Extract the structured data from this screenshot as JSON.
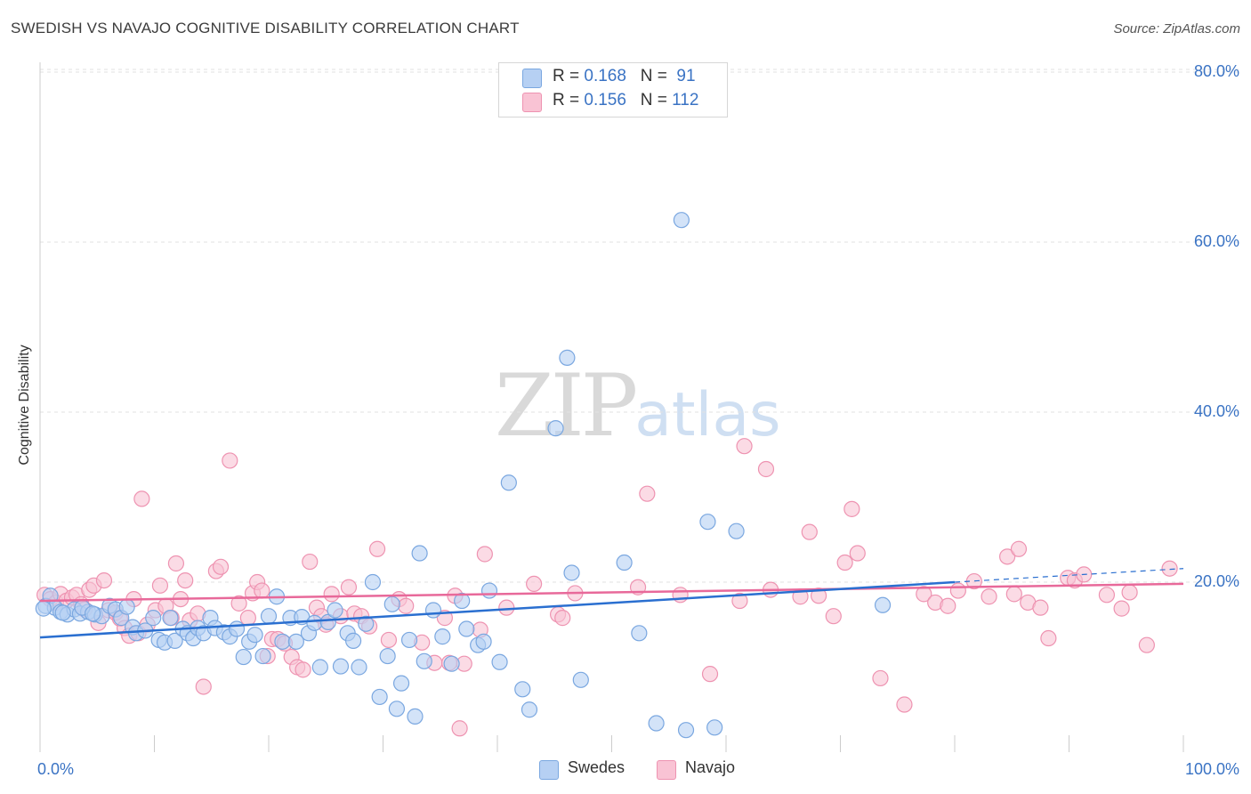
{
  "header": {
    "title": "SWEDISH VS NAVAJO COGNITIVE DISABILITY CORRELATION CHART",
    "source": "Source: ZipAtlas.com"
  },
  "watermark": {
    "zip": "ZIP",
    "atlas": "atlas"
  },
  "legend_top": [
    {
      "r_label": "R = ",
      "r_value": "0.168",
      "n_label": "N = ",
      "n_value": " 91"
    },
    {
      "r_label": "R = ",
      "r_value": "0.156",
      "n_label": "N = ",
      "n_value": "112"
    }
  ],
  "legend_bottom": [
    "Swedes",
    "Navajo"
  ],
  "colors": {
    "swedes_fill": "#b6d0f3",
    "swedes_stroke": "#7aa7e0",
    "swedes_line": "#2a6fd0",
    "navajo_fill": "#f9c3d4",
    "navajo_stroke": "#ee93b1",
    "navajo_line": "#e8699a",
    "tick_text": "#3a73c4",
    "grid": "#e2e2e2"
  },
  "chart_data": {
    "type": "scatter",
    "title": "SWEDISH VS NAVAJO COGNITIVE DISABILITY CORRELATION CHART",
    "xlabel": "",
    "ylabel": "Cognitive Disability",
    "xlim": [
      0,
      100
    ],
    "ylim": [
      0,
      85
    ],
    "x_tick_labels": [
      "0.0%",
      "100.0%"
    ],
    "y_ticks": [
      20,
      40,
      60,
      80
    ],
    "y_tick_labels": [
      "20.0%",
      "40.0%",
      "60.0%",
      "80.0%"
    ],
    "grid": true,
    "legend": "top-center",
    "series": [
      {
        "name": "Swedes",
        "R": 0.168,
        "N": 91,
        "trend": {
          "x": [
            0,
            80
          ],
          "y": [
            13.5,
            20.0
          ]
        },
        "trend_extension": {
          "x": [
            80,
            100
          ],
          "y": [
            20.0,
            21.6
          ]
        },
        "points": [
          [
            0.5,
            17.2
          ],
          [
            0.9,
            18.4
          ],
          [
            1.3,
            17.0
          ],
          [
            1.8,
            16.5
          ],
          [
            2.4,
            16.2
          ],
          [
            3.0,
            16.8
          ],
          [
            3.5,
            16.3
          ],
          [
            4.2,
            16.5
          ],
          [
            4.8,
            16.2
          ],
          [
            5.4,
            16.0
          ],
          [
            6.1,
            17.2
          ],
          [
            6.6,
            16.8
          ],
          [
            7.1,
            15.8
          ],
          [
            7.6,
            17.1
          ],
          [
            8.1,
            14.7
          ],
          [
            8.4,
            14.0
          ],
          [
            9.2,
            14.3
          ],
          [
            9.9,
            15.8
          ],
          [
            10.4,
            13.2
          ],
          [
            10.9,
            12.9
          ],
          [
            11.4,
            15.8
          ],
          [
            11.8,
            13.1
          ],
          [
            12.5,
            14.5
          ],
          [
            12.9,
            14.0
          ],
          [
            13.4,
            13.4
          ],
          [
            13.8,
            14.6
          ],
          [
            14.3,
            14.0
          ],
          [
            14.9,
            15.8
          ],
          [
            15.3,
            14.6
          ],
          [
            16.1,
            14.1
          ],
          [
            16.6,
            13.6
          ],
          [
            17.2,
            14.5
          ],
          [
            17.8,
            11.2
          ],
          [
            18.3,
            13.0
          ],
          [
            18.8,
            13.8
          ],
          [
            19.5,
            11.3
          ],
          [
            20.0,
            16.0
          ],
          [
            20.7,
            18.3
          ],
          [
            21.2,
            13.0
          ],
          [
            21.9,
            15.8
          ],
          [
            22.4,
            13.0
          ],
          [
            22.9,
            15.9
          ],
          [
            23.5,
            14.0
          ],
          [
            24.0,
            15.2
          ],
          [
            24.5,
            10.0
          ],
          [
            25.2,
            15.3
          ],
          [
            25.8,
            16.7
          ],
          [
            26.3,
            10.1
          ],
          [
            26.9,
            14.0
          ],
          [
            27.4,
            13.1
          ],
          [
            27.9,
            10.0
          ],
          [
            28.5,
            15.1
          ],
          [
            29.1,
            20.0
          ],
          [
            29.7,
            6.5
          ],
          [
            30.4,
            11.3
          ],
          [
            30.8,
            17.4
          ],
          [
            31.2,
            5.1
          ],
          [
            31.6,
            8.1
          ],
          [
            32.3,
            13.2
          ],
          [
            32.8,
            4.2
          ],
          [
            33.2,
            23.4
          ],
          [
            33.6,
            10.7
          ],
          [
            34.4,
            16.7
          ],
          [
            35.2,
            13.6
          ],
          [
            36.0,
            10.4
          ],
          [
            36.9,
            17.8
          ],
          [
            37.3,
            14.5
          ],
          [
            38.3,
            12.6
          ],
          [
            38.8,
            13.0
          ],
          [
            39.3,
            19.0
          ],
          [
            40.2,
            10.6
          ],
          [
            41.0,
            31.7
          ],
          [
            42.2,
            7.4
          ],
          [
            42.8,
            5.0
          ],
          [
            45.1,
            38.1
          ],
          [
            46.5,
            21.1
          ],
          [
            47.3,
            8.5
          ],
          [
            46.1,
            46.4
          ],
          [
            51.1,
            22.3
          ],
          [
            52.4,
            14.0
          ],
          [
            53.9,
            3.4
          ],
          [
            56.1,
            62.6
          ],
          [
            56.5,
            2.6
          ],
          [
            58.4,
            27.1
          ],
          [
            59.0,
            2.9
          ],
          [
            60.9,
            26.0
          ],
          [
            73.7,
            17.3
          ],
          [
            2.0,
            16.4
          ],
          [
            3.7,
            17.0
          ],
          [
            0.3,
            16.9
          ],
          [
            4.6,
            16.3
          ]
        ]
      },
      {
        "name": "Navajo",
        "R": 0.156,
        "N": 112,
        "trend": {
          "x": [
            0,
            100
          ],
          "y": [
            17.8,
            19.8
          ]
        },
        "points": [
          [
            0.4,
            18.5
          ],
          [
            0.9,
            18.0
          ],
          [
            1.4,
            17.6
          ],
          [
            1.8,
            18.6
          ],
          [
            2.3,
            17.8
          ],
          [
            2.8,
            18.2
          ],
          [
            3.2,
            18.5
          ],
          [
            3.6,
            17.4
          ],
          [
            3.9,
            16.8
          ],
          [
            4.3,
            19.1
          ],
          [
            4.7,
            19.6
          ],
          [
            5.1,
            15.2
          ],
          [
            5.6,
            20.2
          ],
          [
            6.0,
            16.7
          ],
          [
            6.6,
            16.4
          ],
          [
            7.0,
            15.7
          ],
          [
            7.4,
            14.6
          ],
          [
            7.8,
            13.7
          ],
          [
            8.2,
            18.0
          ],
          [
            8.6,
            14.0
          ],
          [
            8.9,
            29.8
          ],
          [
            9.4,
            15.0
          ],
          [
            10.1,
            16.7
          ],
          [
            10.5,
            19.6
          ],
          [
            11.0,
            17.2
          ],
          [
            11.5,
            15.8
          ],
          [
            11.9,
            22.2
          ],
          [
            12.3,
            18.0
          ],
          [
            12.7,
            20.2
          ],
          [
            13.1,
            15.5
          ],
          [
            13.8,
            16.3
          ],
          [
            14.3,
            7.7
          ],
          [
            15.4,
            21.3
          ],
          [
            15.8,
            21.8
          ],
          [
            16.6,
            34.3
          ],
          [
            17.4,
            17.5
          ],
          [
            18.2,
            15.8
          ],
          [
            18.6,
            18.7
          ],
          [
            19.0,
            20.0
          ],
          [
            19.4,
            19.0
          ],
          [
            19.9,
            11.3
          ],
          [
            20.3,
            13.3
          ],
          [
            20.8,
            13.3
          ],
          [
            21.4,
            12.8
          ],
          [
            22.0,
            11.2
          ],
          [
            22.5,
            10.0
          ],
          [
            23.0,
            9.7
          ],
          [
            23.6,
            22.4
          ],
          [
            24.2,
            17.0
          ],
          [
            24.6,
            16.0
          ],
          [
            25.0,
            15.0
          ],
          [
            25.5,
            18.6
          ],
          [
            26.3,
            16.0
          ],
          [
            27.0,
            19.4
          ],
          [
            27.5,
            16.3
          ],
          [
            28.1,
            16.0
          ],
          [
            28.8,
            14.8
          ],
          [
            29.5,
            23.9
          ],
          [
            30.5,
            13.2
          ],
          [
            31.4,
            18.0
          ],
          [
            32.0,
            17.2
          ],
          [
            33.4,
            12.9
          ],
          [
            34.5,
            10.5
          ],
          [
            35.4,
            15.8
          ],
          [
            35.8,
            10.5
          ],
          [
            36.3,
            18.4
          ],
          [
            36.7,
            2.8
          ],
          [
            37.1,
            10.4
          ],
          [
            38.5,
            14.4
          ],
          [
            38.9,
            23.3
          ],
          [
            40.8,
            17.0
          ],
          [
            43.2,
            19.8
          ],
          [
            45.3,
            16.2
          ],
          [
            45.7,
            15.8
          ],
          [
            46.8,
            18.7
          ],
          [
            52.3,
            19.4
          ],
          [
            53.1,
            30.4
          ],
          [
            56.0,
            18.5
          ],
          [
            58.6,
            9.2
          ],
          [
            61.2,
            17.8
          ],
          [
            61.6,
            36.0
          ],
          [
            63.5,
            33.3
          ],
          [
            63.9,
            19.1
          ],
          [
            66.5,
            18.3
          ],
          [
            67.3,
            25.9
          ],
          [
            68.1,
            18.4
          ],
          [
            69.4,
            16.0
          ],
          [
            70.4,
            22.3
          ],
          [
            71.0,
            28.6
          ],
          [
            71.5,
            23.4
          ],
          [
            73.5,
            8.7
          ],
          [
            75.6,
            5.6
          ],
          [
            77.3,
            18.6
          ],
          [
            78.3,
            17.6
          ],
          [
            79.4,
            17.2
          ],
          [
            80.3,
            19.0
          ],
          [
            81.7,
            20.1
          ],
          [
            83.0,
            18.3
          ],
          [
            84.6,
            23.0
          ],
          [
            85.2,
            18.6
          ],
          [
            85.6,
            23.9
          ],
          [
            86.4,
            17.6
          ],
          [
            87.5,
            17.0
          ],
          [
            88.2,
            13.4
          ],
          [
            89.9,
            20.5
          ],
          [
            90.5,
            20.2
          ],
          [
            91.3,
            20.9
          ],
          [
            93.3,
            18.5
          ],
          [
            94.6,
            16.9
          ],
          [
            95.3,
            18.8
          ],
          [
            96.8,
            12.6
          ],
          [
            98.8,
            21.6
          ]
        ]
      }
    ]
  }
}
